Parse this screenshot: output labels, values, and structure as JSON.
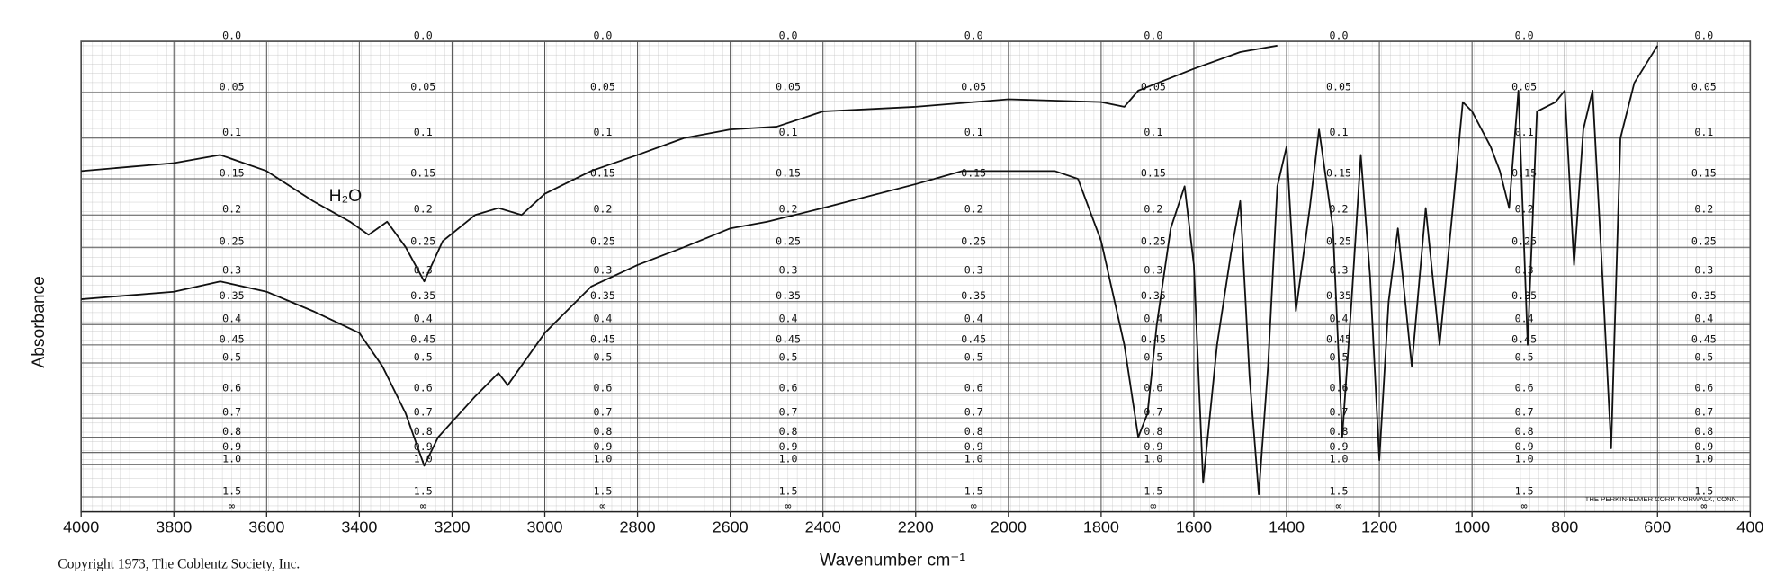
{
  "chart_data": {
    "type": "line",
    "y_scale": "absorbance",
    "x_label": "Wavenumber cm⁻¹",
    "y_label": "Absorbance",
    "xlim": [
      4000,
      400
    ],
    "xticks": [
      4000,
      3800,
      3600,
      3400,
      3200,
      3000,
      2800,
      2600,
      2400,
      2200,
      2000,
      1800,
      1600,
      1400,
      1200,
      1000,
      800,
      600,
      400
    ],
    "yticks": [
      {
        "value": 0,
        "label": "0.0"
      },
      0.05,
      0.1,
      0.15,
      0.2,
      0.25,
      0.3,
      0.35,
      0.4,
      0.45,
      0.5,
      0.6,
      0.7,
      0.8,
      0.9,
      {
        "value": 1,
        "label": "1.0"
      },
      1.5
    ],
    "y_infinity_label": "∞",
    "grid": true,
    "annotations": [
      {
        "text": "H₂O",
        "x": 3430,
        "y": 0.19
      }
    ],
    "footer": "THE PERKIN-ELMER CORP. NORWALK, CONN.",
    "copyright": "Copyright 1973, The Coblentz Society, Inc.",
    "series": [
      {
        "color": "#111111",
        "x": [
          4000,
          3800,
          3700,
          3600,
          3500,
          3420,
          3380,
          3340,
          3300,
          3260,
          3220,
          3150,
          3100,
          3050,
          3000,
          2900,
          2800,
          2700,
          2600,
          2500,
          2400,
          2200,
          2000,
          1800,
          1750,
          1720,
          1600,
          1500,
          1420
        ],
        "values": [
          0.14,
          0.13,
          0.12,
          0.14,
          0.18,
          0.21,
          0.23,
          0.21,
          0.25,
          0.31,
          0.24,
          0.2,
          0.19,
          0.2,
          0.17,
          0.14,
          0.12,
          0.1,
          0.09,
          0.087,
          0.07,
          0.065,
          0.057,
          0.06,
          0.065,
          0.048,
          0.026,
          0.01,
          0.004
        ]
      },
      {
        "color": "#111111",
        "x": [
          4000,
          3800,
          3700,
          3600,
          3500,
          3400,
          3350,
          3300,
          3260,
          3230,
          3150,
          3100,
          3080,
          3000,
          2900,
          2800,
          2700,
          2600,
          2520,
          2400,
          2200,
          2100,
          2000,
          1900,
          1850,
          1800,
          1750,
          1720,
          1700,
          1680,
          1650,
          1620,
          1600,
          1580,
          1550,
          1520,
          1500,
          1480,
          1460,
          1440,
          1420,
          1400,
          1380,
          1350,
          1330,
          1300,
          1280,
          1260,
          1240,
          1220,
          1200,
          1180,
          1160,
          1130,
          1100,
          1070,
          1040,
          1020,
          1000,
          960,
          940,
          920,
          900,
          880,
          860,
          820,
          800,
          780,
          760,
          740,
          720,
          700,
          680,
          650,
          600
        ],
        "values": [
          0.345,
          0.33,
          0.31,
          0.33,
          0.37,
          0.42,
          0.51,
          0.68,
          1.01,
          0.8,
          0.61,
          0.53,
          0.57,
          0.42,
          0.32,
          0.28,
          0.25,
          0.22,
          0.21,
          0.19,
          0.157,
          0.14,
          0.14,
          0.14,
          0.15,
          0.24,
          0.45,
          0.8,
          0.68,
          0.4,
          0.22,
          0.16,
          0.28,
          1.21,
          0.45,
          0.26,
          0.18,
          0.54,
          1.43,
          0.51,
          0.16,
          0.11,
          0.37,
          0.19,
          0.09,
          0.22,
          0.8,
          0.35,
          0.12,
          0.3,
          0.96,
          0.35,
          0.22,
          0.51,
          0.19,
          0.45,
          0.18,
          0.06,
          0.07,
          0.11,
          0.14,
          0.19,
          0.048,
          0.45,
          0.07,
          0.06,
          0.048,
          0.28,
          0.09,
          0.048,
          0.28,
          0.87,
          0.1,
          0.04,
          0.004
        ]
      }
    ]
  }
}
